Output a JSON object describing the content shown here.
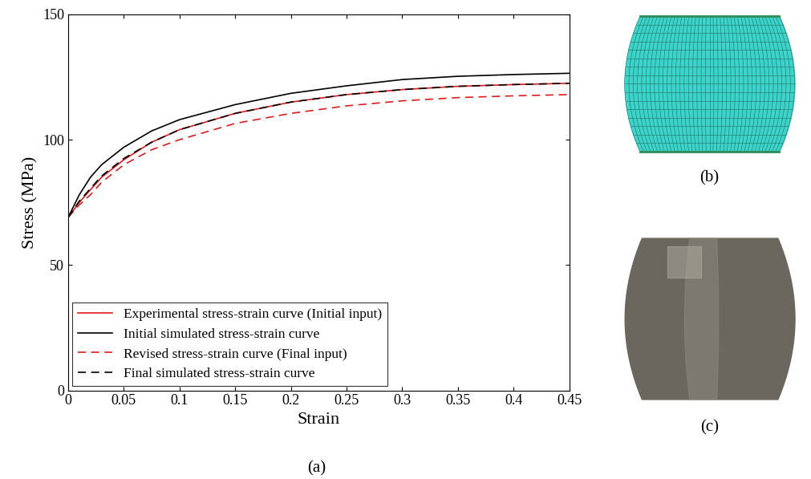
{
  "chart_data": {
    "type": "line",
    "x_label": "Strain",
    "y_label": "Stress (MPa)",
    "caption": "(a)",
    "x": [
      0,
      0.01,
      0.02,
      0.03,
      0.05,
      0.075,
      0.1,
      0.15,
      0.2,
      0.25,
      0.3,
      0.35,
      0.4,
      0.45
    ],
    "series": [
      {
        "name": "Experimental stress-strain curve (Initial input)",
        "color": "#e31a1c",
        "line_style": "solid",
        "values": [
          69,
          75,
          80,
          85,
          92,
          99,
          104,
          110.5,
          115,
          118,
          120,
          121.3,
          122,
          122.5
        ]
      },
      {
        "name": "Initial simulated stress-strain curve",
        "color": "#000000",
        "line_style": "solid",
        "values": [
          69,
          78,
          85,
          90,
          97,
          103.5,
          108,
          114,
          118.5,
          121.5,
          124,
          125.3,
          126,
          126.5
        ]
      },
      {
        "name": "Revised stress-strain curve (Final input)",
        "color": "#e31a1c",
        "line_style": "dashed",
        "values": [
          69,
          74,
          78,
          83,
          90,
          96,
          100,
          106.5,
          110.5,
          113.5,
          115.5,
          116.8,
          117.5,
          118
        ]
      },
      {
        "name": "Final simulated stress-strain curve",
        "color": "#000000",
        "line_style": "dashed",
        "values": [
          69,
          75.5,
          80.5,
          85.5,
          92.5,
          99,
          104,
          110.5,
          115,
          118,
          120,
          121.3,
          122,
          122.5
        ]
      }
    ],
    "xlim": [
      0,
      0.45
    ],
    "xticks": [
      0,
      0.05,
      0.1,
      0.15,
      0.2,
      0.25,
      0.3,
      0.35,
      0.4,
      0.45
    ],
    "ylim": [
      0,
      150
    ],
    "yticks": [
      0,
      50,
      100,
      150
    ],
    "grid": false,
    "legend": "lower left"
  },
  "panels": {
    "b": {
      "label": "(b)"
    },
    "c": {
      "label": "(c)"
    }
  }
}
